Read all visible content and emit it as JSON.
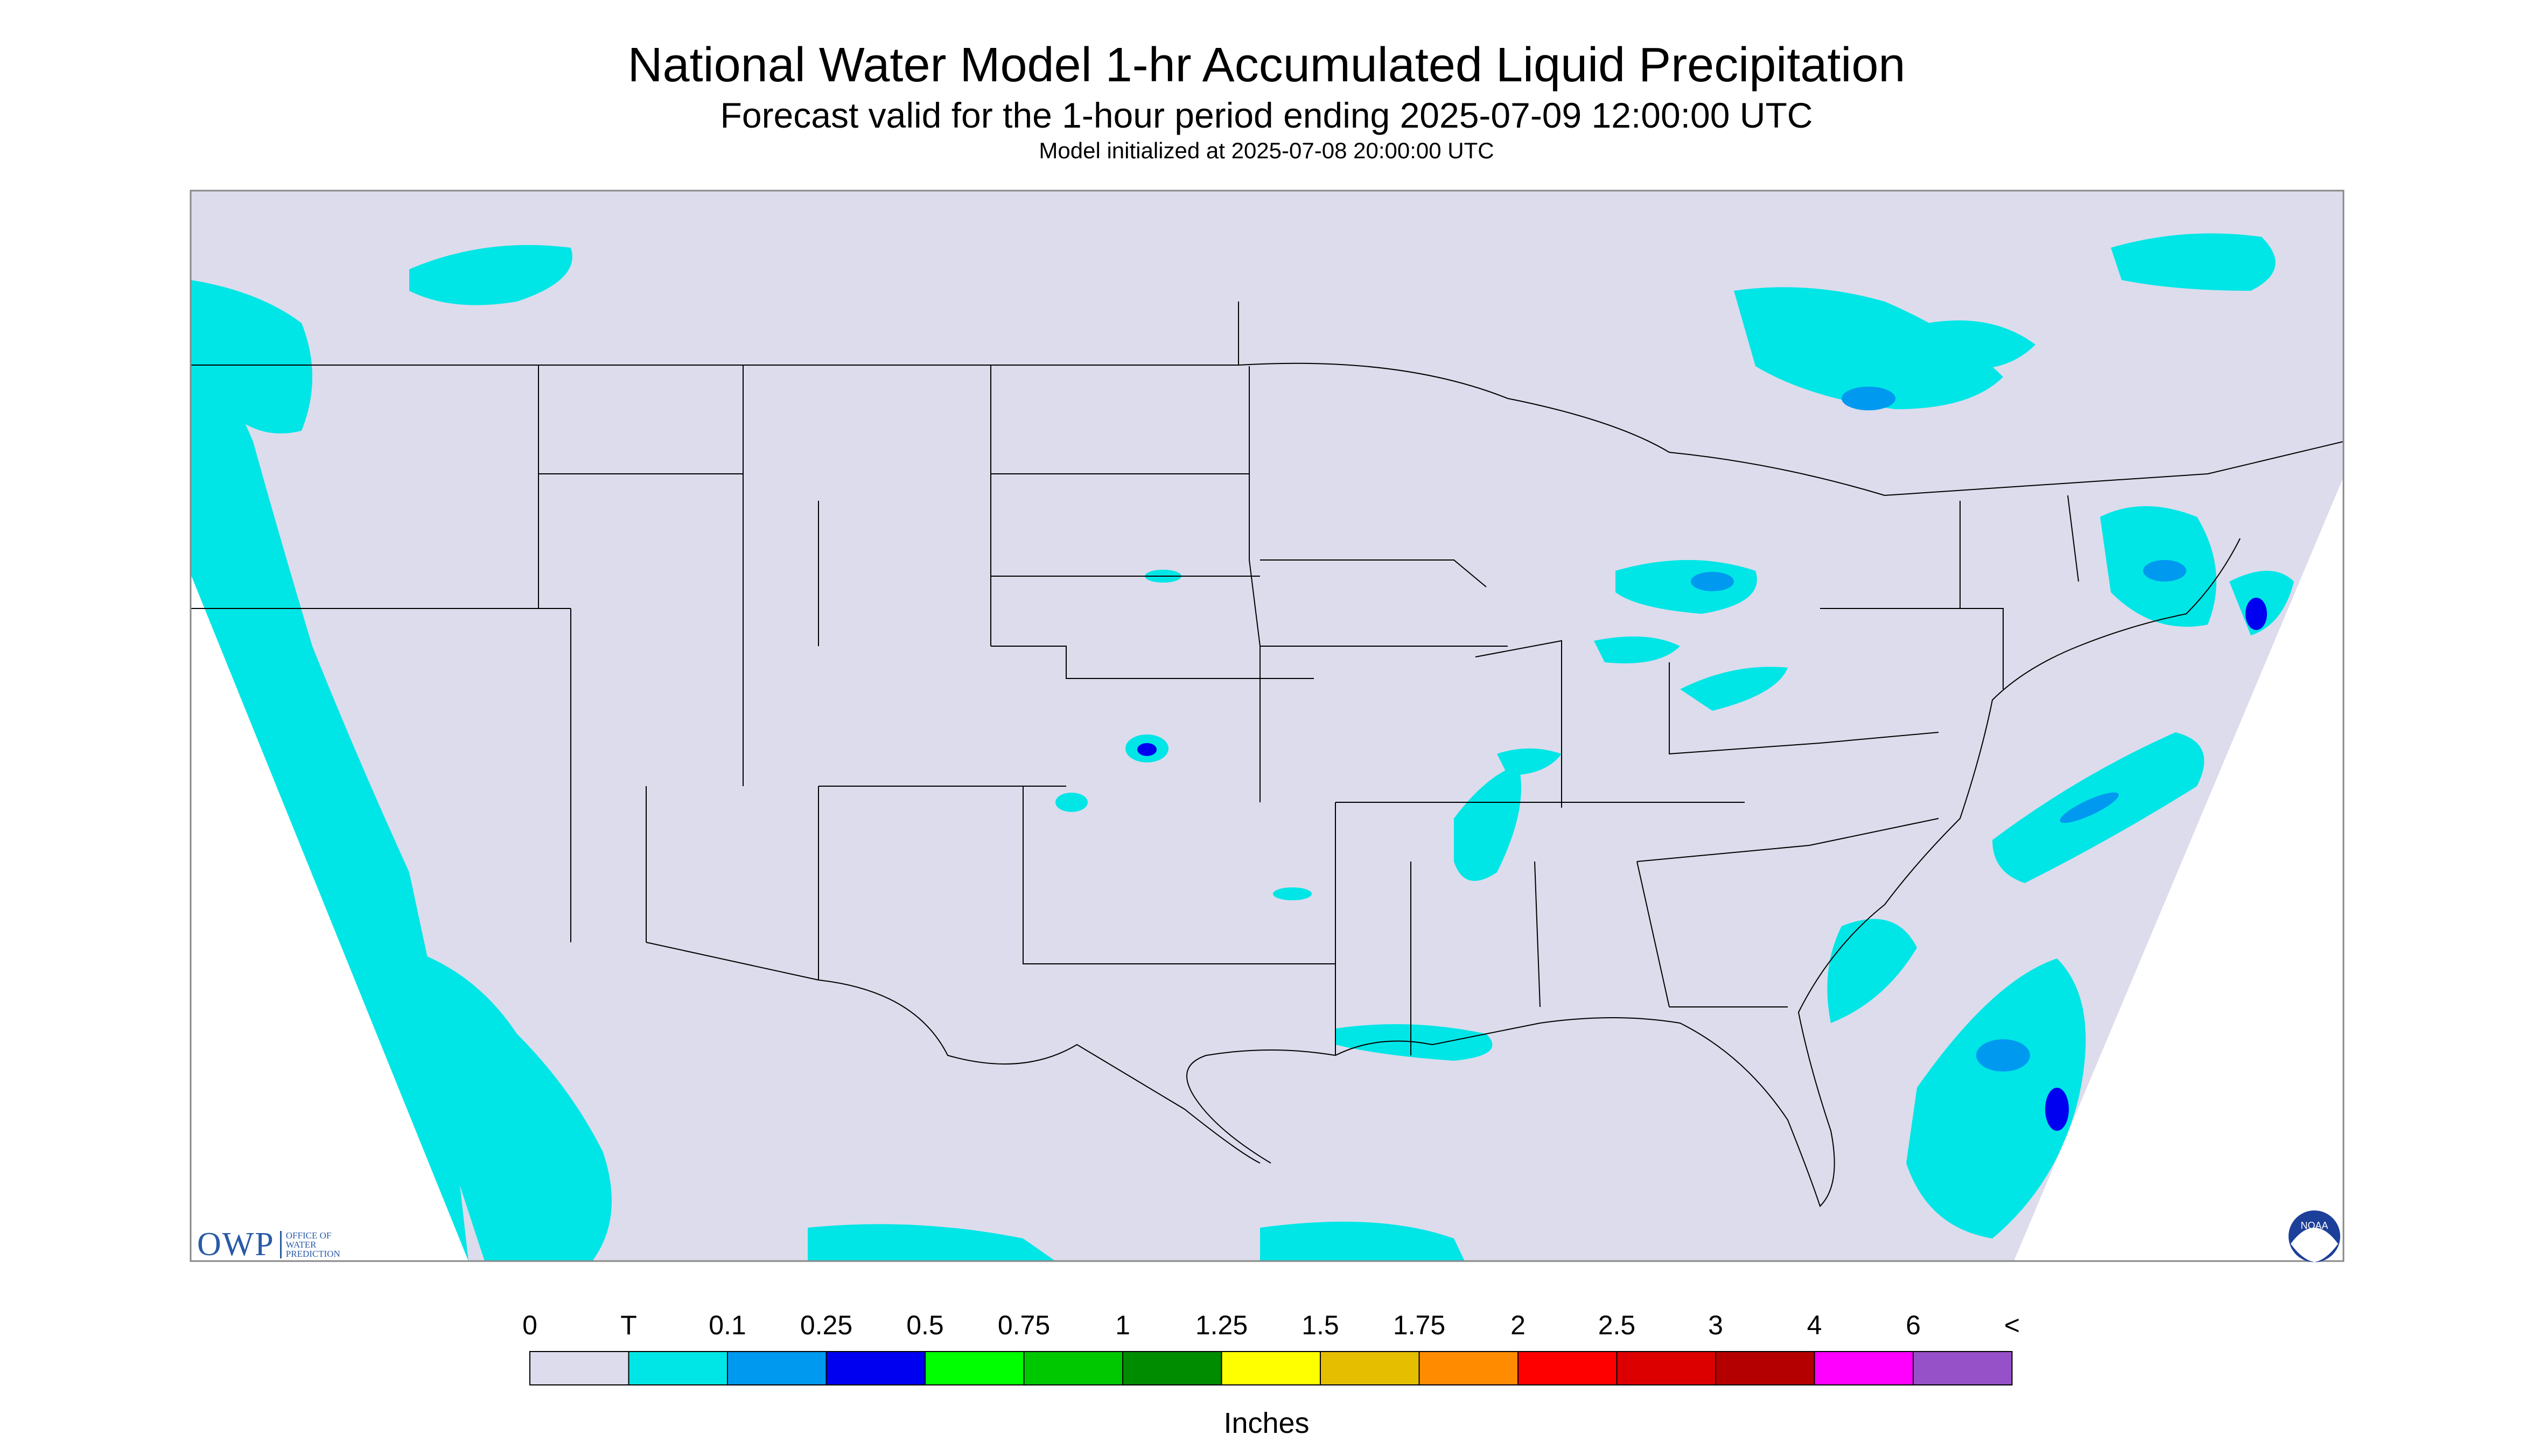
{
  "title": "National Water Model 1-hr Accumulated Liquid Precipitation",
  "subtitle": "Forecast valid for the 1-hour period ending 2025-07-09 12:00:00 UTC",
  "init_line": "Model initialized at 2025-07-08 20:00:00 UTC",
  "legend": {
    "unit_label": "Inches",
    "tick_labels": [
      "0",
      "T",
      "0.1",
      "0.25",
      "0.5",
      "0.75",
      "1",
      "1.25",
      "1.5",
      "1.75",
      "2",
      "2.5",
      "3",
      "4",
      "6",
      "<"
    ],
    "colors": [
      "#dcdcec",
      "#00e6e6",
      "#0099f0",
      "#0000f0",
      "#00ff00",
      "#00c800",
      "#008c00",
      "#ffff00",
      "#e6be00",
      "#ff8c00",
      "#ff0000",
      "#dc0000",
      "#b40000",
      "#ff00ff",
      "#9650c8"
    ]
  },
  "logos": {
    "owp": "OWP",
    "owp_sub": [
      "OFFICE OF",
      "WATER",
      "PREDICTION"
    ],
    "noaa": "NOAA"
  },
  "map": {
    "background_color": "#dcdcec",
    "precip_light_color": "#00e6e6",
    "precip_mid_color": "#0099f0",
    "precip_heavy_color": "#0000f0"
  }
}
